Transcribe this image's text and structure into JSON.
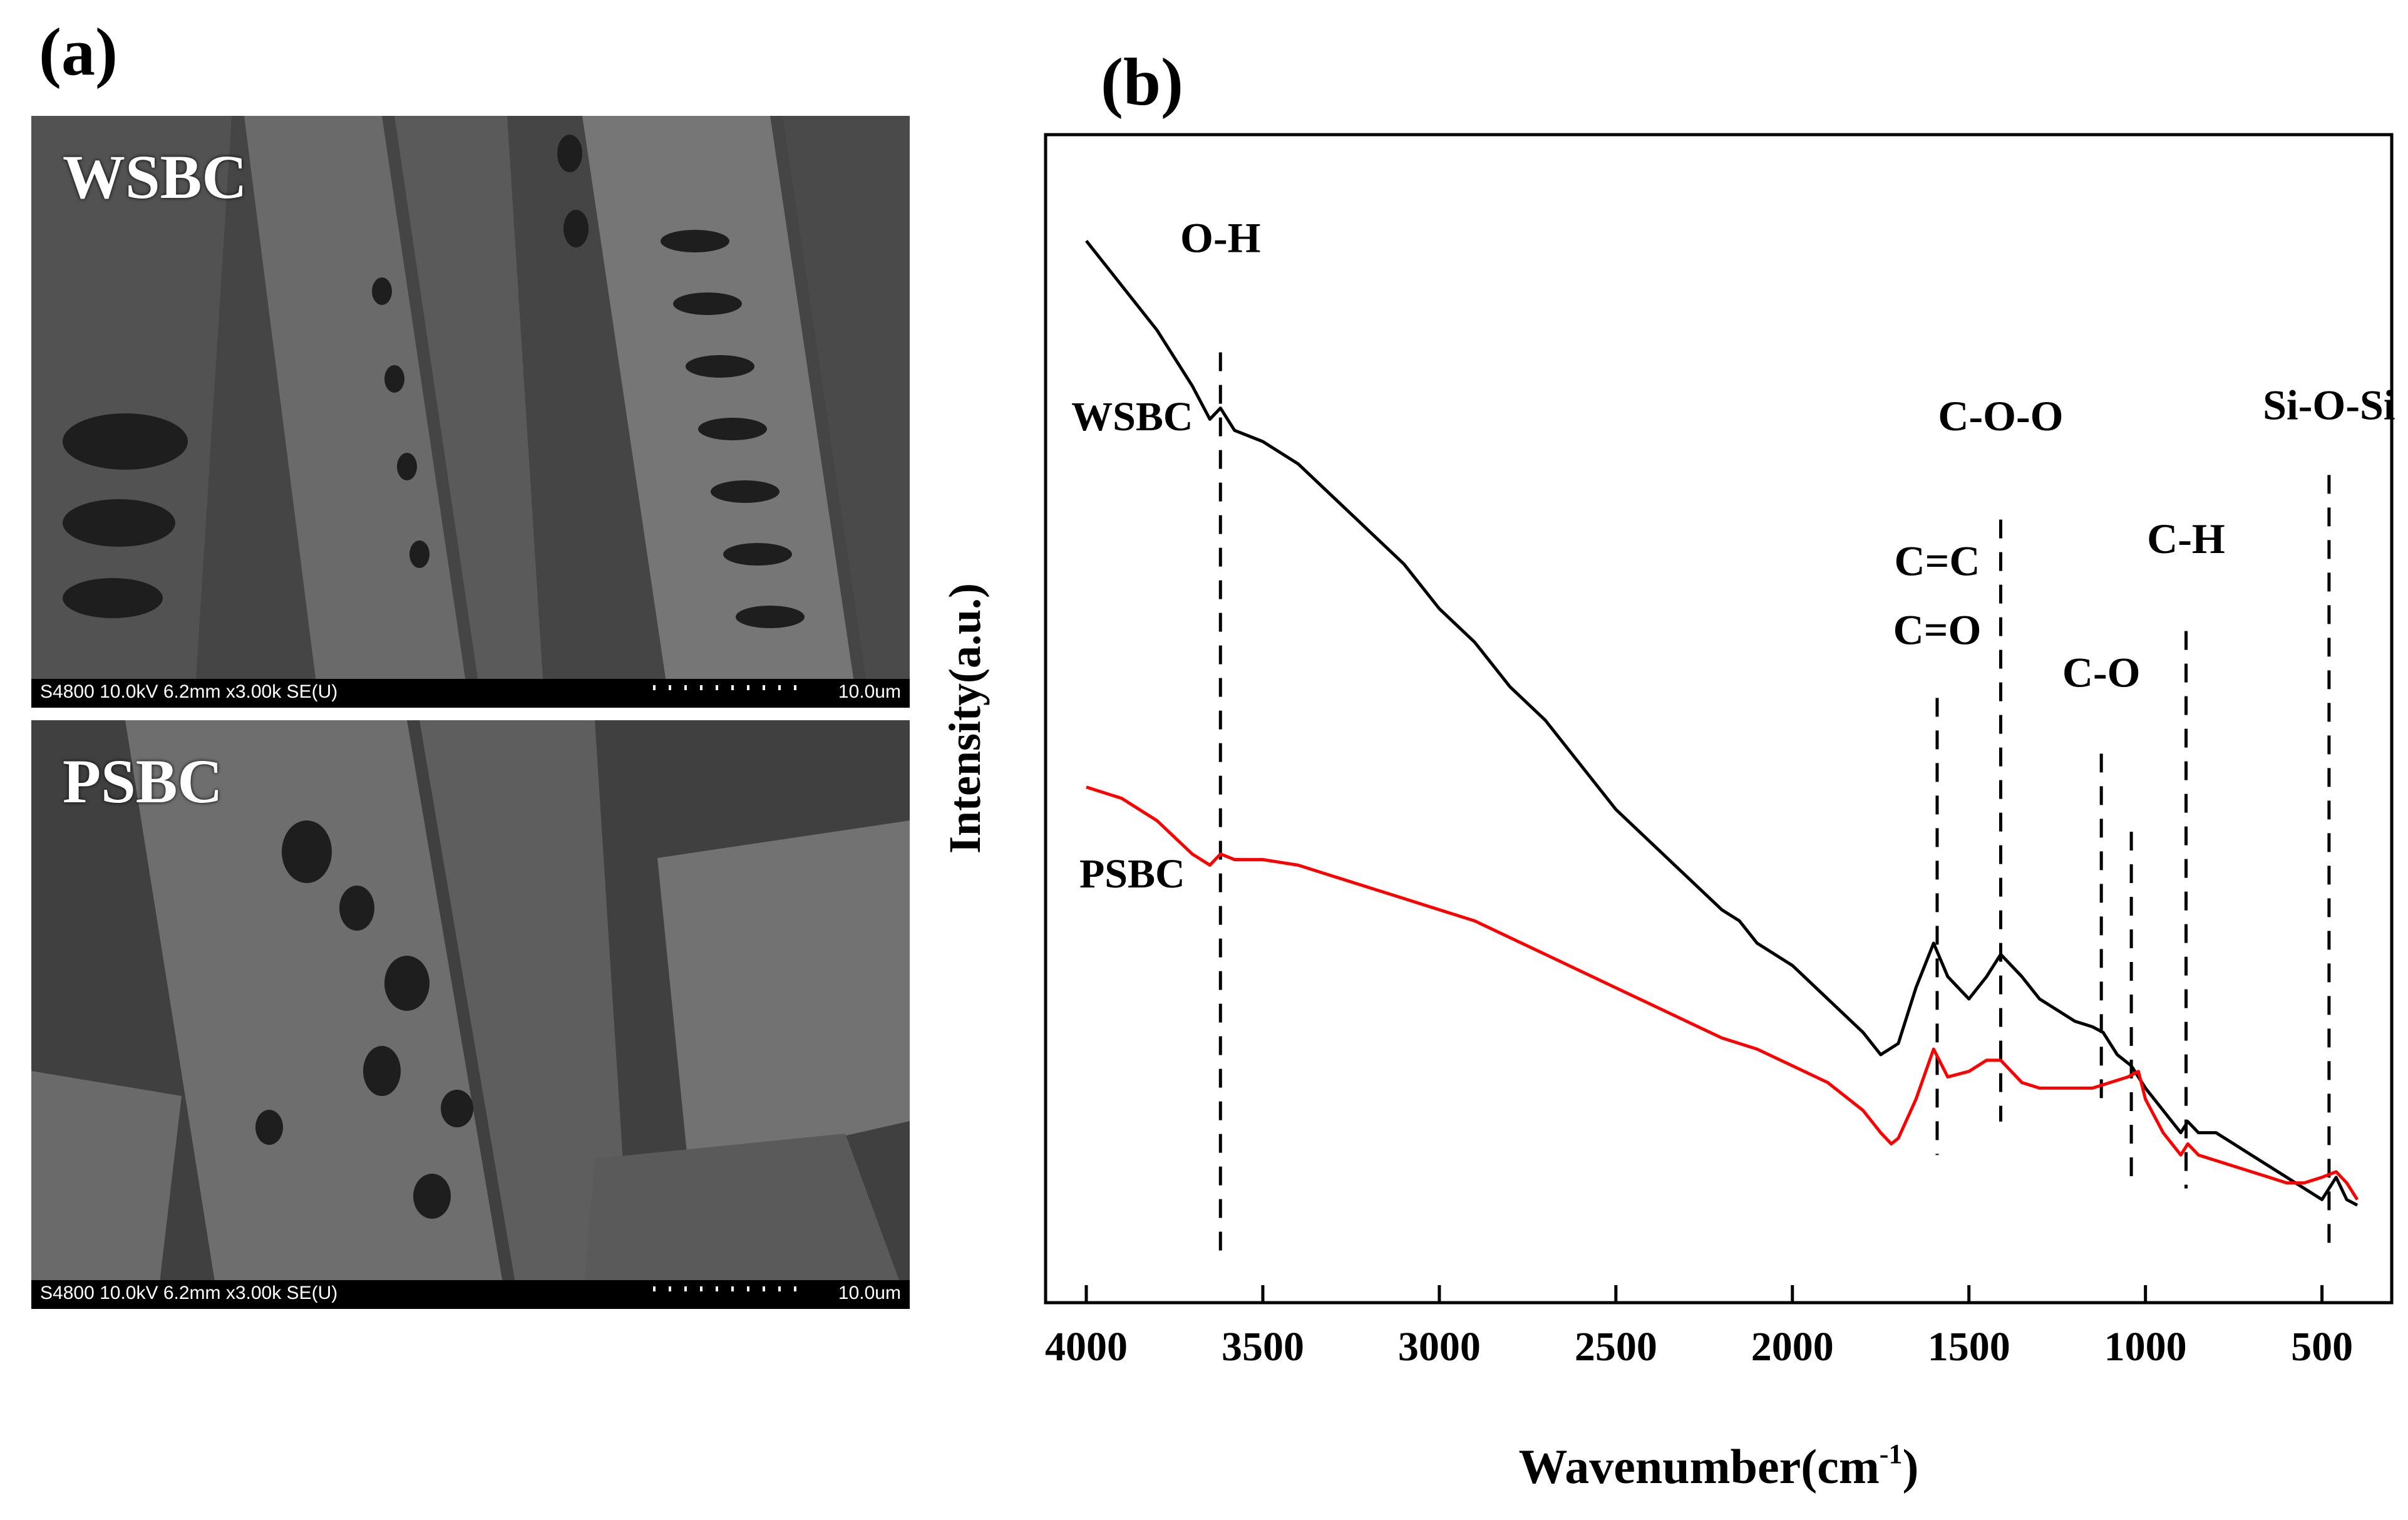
{
  "panel_a": {
    "label": "(a)",
    "images": [
      {
        "title": "WSBC",
        "meta": "S4800 10.0kV 6.2mm x3.00k SE(U)",
        "scale": "10.0um"
      },
      {
        "title": "PSBC",
        "meta": "S4800 10.0kV 6.2mm x3.00k SE(U)",
        "scale": "10.0um"
      }
    ]
  },
  "panel_b": {
    "label": "(b)"
  },
  "chart_data": {
    "type": "line",
    "title": "",
    "xlabel": "Wavenumber(cm",
    "xlabel_sup": "-1",
    "xlabel_close": ")",
    "ylabel": "Intensity(a.u.)",
    "xlim": [
      4000,
      400
    ],
    "ylim": [
      0,
      100
    ],
    "x_reversed": true,
    "x_ticks": [
      4000,
      3500,
      3000,
      2500,
      2000,
      1500,
      1000,
      500
    ],
    "y_ticks_shown": false,
    "grid": false,
    "series": [
      {
        "name": "WSBC",
        "color": "#000000",
        "points": [
          [
            4000,
            93
          ],
          [
            3900,
            89
          ],
          [
            3800,
            85
          ],
          [
            3700,
            80
          ],
          [
            3650,
            77
          ],
          [
            3620,
            78
          ],
          [
            3580,
            76
          ],
          [
            3500,
            75
          ],
          [
            3400,
            73
          ],
          [
            3300,
            70
          ],
          [
            3200,
            67
          ],
          [
            3100,
            64
          ],
          [
            3050,
            62
          ],
          [
            3000,
            60
          ],
          [
            2900,
            57
          ],
          [
            2800,
            53
          ],
          [
            2700,
            50
          ],
          [
            2600,
            46
          ],
          [
            2500,
            42
          ],
          [
            2400,
            39
          ],
          [
            2300,
            36
          ],
          [
            2200,
            33
          ],
          [
            2150,
            32
          ],
          [
            2100,
            30
          ],
          [
            2000,
            28
          ],
          [
            1900,
            25
          ],
          [
            1800,
            22
          ],
          [
            1750,
            20
          ],
          [
            1700,
            21
          ],
          [
            1650,
            26
          ],
          [
            1600,
            30
          ],
          [
            1560,
            27
          ],
          [
            1500,
            25
          ],
          [
            1450,
            27
          ],
          [
            1410,
            29
          ],
          [
            1350,
            27
          ],
          [
            1300,
            25
          ],
          [
            1250,
            24
          ],
          [
            1200,
            23
          ],
          [
            1150,
            22.5
          ],
          [
            1120,
            22
          ],
          [
            1080,
            20
          ],
          [
            1040,
            19
          ],
          [
            1000,
            17
          ],
          [
            950,
            15
          ],
          [
            900,
            13
          ],
          [
            880,
            14
          ],
          [
            850,
            13
          ],
          [
            800,
            13
          ],
          [
            750,
            12
          ],
          [
            700,
            11
          ],
          [
            650,
            10
          ],
          [
            600,
            9
          ],
          [
            550,
            8
          ],
          [
            500,
            7
          ],
          [
            460,
            9
          ],
          [
            430,
            7
          ],
          [
            400,
            6.5
          ]
        ]
      },
      {
        "name": "PSBC",
        "color": "#ff0000",
        "points": [
          [
            4000,
            44
          ],
          [
            3900,
            43
          ],
          [
            3800,
            41
          ],
          [
            3700,
            38
          ],
          [
            3650,
            37
          ],
          [
            3620,
            38
          ],
          [
            3580,
            37.5
          ],
          [
            3500,
            37.5
          ],
          [
            3400,
            37
          ],
          [
            3300,
            36
          ],
          [
            3200,
            35
          ],
          [
            3100,
            34
          ],
          [
            3000,
            33
          ],
          [
            2900,
            32
          ],
          [
            2800,
            30.5
          ],
          [
            2700,
            29
          ],
          [
            2600,
            27.5
          ],
          [
            2500,
            26
          ],
          [
            2400,
            24.5
          ],
          [
            2300,
            23
          ],
          [
            2200,
            21.5
          ],
          [
            2100,
            20.5
          ],
          [
            2000,
            19
          ],
          [
            1900,
            17.5
          ],
          [
            1800,
            15
          ],
          [
            1750,
            13
          ],
          [
            1720,
            12
          ],
          [
            1700,
            12.5
          ],
          [
            1650,
            16
          ],
          [
            1600,
            20.5
          ],
          [
            1560,
            18
          ],
          [
            1500,
            18.5
          ],
          [
            1450,
            19.5
          ],
          [
            1410,
            19.5
          ],
          [
            1350,
            17.5
          ],
          [
            1300,
            17
          ],
          [
            1250,
            17
          ],
          [
            1200,
            17
          ],
          [
            1150,
            17
          ],
          [
            1100,
            17.5
          ],
          [
            1050,
            18
          ],
          [
            1020,
            18.5
          ],
          [
            1000,
            16
          ],
          [
            950,
            13
          ],
          [
            900,
            11
          ],
          [
            880,
            12
          ],
          [
            850,
            11
          ],
          [
            800,
            10.5
          ],
          [
            750,
            10
          ],
          [
            700,
            9.5
          ],
          [
            650,
            9
          ],
          [
            600,
            8.5
          ],
          [
            550,
            8.5
          ],
          [
            500,
            9
          ],
          [
            460,
            9.5
          ],
          [
            430,
            8.5
          ],
          [
            400,
            7
          ]
        ]
      }
    ],
    "series_labels": [
      {
        "text": "WSBC",
        "x": 3870,
        "y": 76
      },
      {
        "text": "PSBC",
        "x": 3870,
        "y": 35
      }
    ],
    "annotations": [
      {
        "lines": [
          "O-H"
        ],
        "x": 3620,
        "line_top": 83,
        "line_bottom": 2,
        "text_y": 92
      },
      {
        "lines": [
          "C=C",
          "C=O"
        ],
        "x": 1590,
        "line_top": 52,
        "line_bottom": 11,
        "text_y": 63
      },
      {
        "lines": [
          "C-O-O"
        ],
        "x": 1410,
        "line_top": 68,
        "line_bottom": 14,
        "text_y": 76
      },
      {
        "lines": [
          "C-O"
        ],
        "x": 1125,
        "line_top": 47,
        "line_bottom": 16,
        "text_y": 53
      },
      {
        "lines": [
          "C-H"
        ],
        "x": 885,
        "line_top": 58,
        "line_bottom": 8,
        "text_y": 65
      },
      {
        "lines": [
          "Si-O-Si"
        ],
        "x": 480,
        "line_top": 72,
        "line_bottom": 3,
        "text_y": 77
      },
      {
        "lines": [],
        "x": 1040,
        "line_top": 40,
        "line_bottom": 8
      }
    ]
  }
}
